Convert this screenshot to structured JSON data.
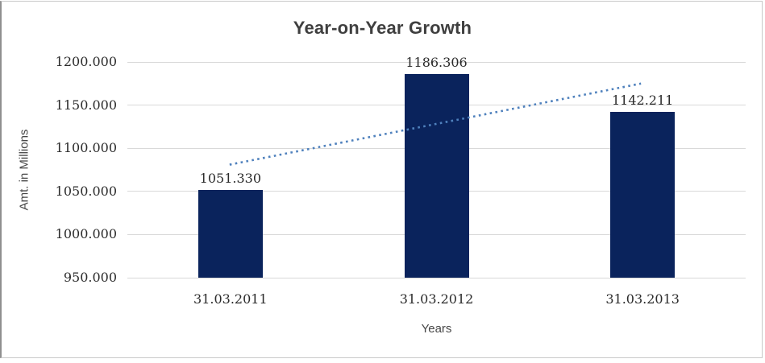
{
  "chart_data": {
    "type": "bar",
    "title": "Year-on-Year Growth",
    "categories": [
      "31.03.2011",
      "31.03.2012",
      "31.03.2013"
    ],
    "values": [
      1051.33,
      1186.306,
      1142.211
    ],
    "data_labels": [
      "1051.330",
      "1186.306",
      "1142.211"
    ],
    "xlabel": "Years",
    "ylabel": "Amt. in Millions",
    "ylim": [
      950,
      1200
    ],
    "ytick_step": 50,
    "yticks": [
      {
        "value": 1200,
        "label": "1200.000"
      },
      {
        "value": 1150,
        "label": "1150.000"
      },
      {
        "value": 1100,
        "label": "1100.000"
      },
      {
        "value": 1050,
        "label": "1050.000"
      },
      {
        "value": 1000,
        "label": "1000.000"
      },
      {
        "value": 950,
        "label": "950.000"
      }
    ],
    "grid": true,
    "legend": "none",
    "trendline": {
      "type": "linear",
      "style": "dotted",
      "start_value": 1081,
      "end_value": 1175
    },
    "colors": {
      "bar": "#0a235c",
      "trendline": "#4f81bd",
      "gridline": "#d9d9d9",
      "title_text": "#3f3f3f",
      "tick_text": "#2b2b2b",
      "axis_title_text": "#474747"
    }
  }
}
